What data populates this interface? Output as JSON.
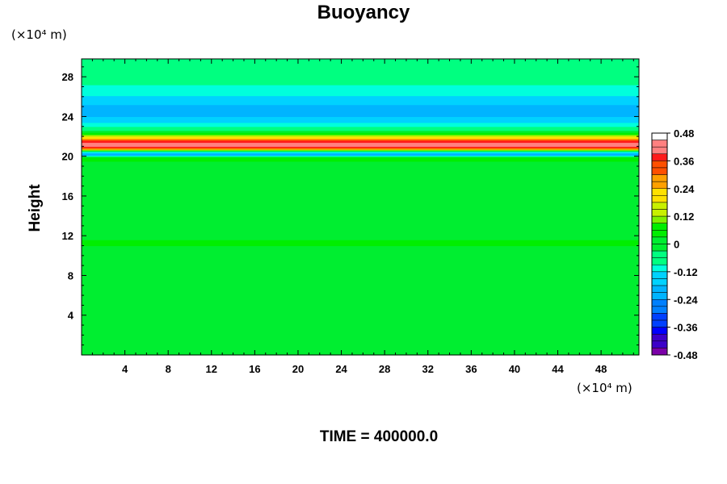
{
  "chart_data": {
    "type": "heatmap",
    "title": "Buoyancy",
    "ylabel": "Height",
    "y_unit": "(×10⁴ m)",
    "x_unit": "(×10⁴ m)",
    "footer_label": "TIME =",
    "footer_value": "400000.0",
    "x_ticks": [
      4,
      8,
      12,
      16,
      20,
      24,
      28,
      32,
      36,
      40,
      44,
      48
    ],
    "y_ticks": [
      4,
      8,
      12,
      16,
      20,
      24,
      28
    ],
    "xlim": [
      0,
      51.5
    ],
    "ylim": [
      0,
      29.8
    ],
    "colorbar": {
      "range": [
        -0.48,
        0.48
      ],
      "levels": 32,
      "tick_labels": [
        "0.48",
        "0.36",
        "0.24",
        "0.12",
        "0",
        "-0.12",
        "-0.24",
        "-0.36",
        "-0.48"
      ],
      "tick_values": [
        0.48,
        0.36,
        0.24,
        0.12,
        0,
        -0.12,
        -0.24,
        -0.36,
        -0.48
      ]
    },
    "field_profile": [
      {
        "height": 0,
        "value": 0.0
      },
      {
        "height": 10.6,
        "value": 0.0
      },
      {
        "height": 11.3,
        "value": 0.05
      },
      {
        "height": 12.0,
        "value": 0.0
      },
      {
        "height": 19.4,
        "value": 0.02
      },
      {
        "height": 19.9,
        "value": 0.06
      },
      {
        "height": 20.2,
        "value": -0.25
      },
      {
        "height": 20.5,
        "value": -0.05
      },
      {
        "height": 20.8,
        "value": 0.3
      },
      {
        "height": 21.2,
        "value": 0.46
      },
      {
        "height": 21.7,
        "value": 0.3
      },
      {
        "height": 22.1,
        "value": 0.12
      },
      {
        "height": 22.6,
        "value": -0.03
      },
      {
        "height": 23.3,
        "value": -0.12
      },
      {
        "height": 24.4,
        "value": -0.22
      },
      {
        "height": 25.4,
        "value": -0.18
      },
      {
        "height": 26.6,
        "value": -0.1
      },
      {
        "height": 27.8,
        "value": -0.06
      },
      {
        "height": 29.8,
        "value": -0.06
      }
    ],
    "colors": {
      "palette": [
        "#7b00a8",
        "#3c00c8",
        "#0000ff",
        "#0040ff",
        "#0080ff",
        "#00b4ff",
        "#00d2ff",
        "#00ffdc",
        "#00ff80",
        "#00ee30",
        "#00ee00",
        "#80f000",
        "#c8f000",
        "#ffe000",
        "#ffa000",
        "#ff5000",
        "#ff1a1a",
        "#ff8080",
        "#ffffff"
      ]
    }
  }
}
